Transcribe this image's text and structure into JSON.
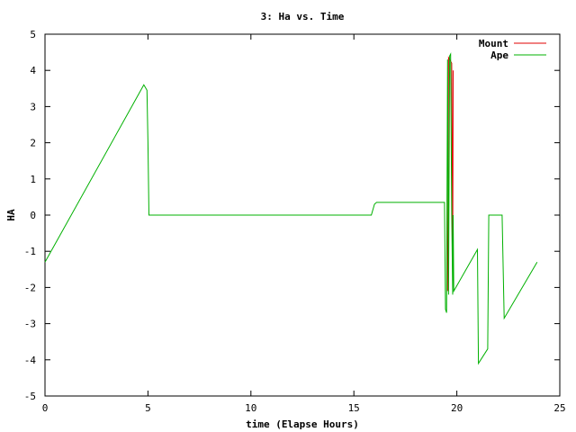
{
  "chart_data": {
    "type": "line",
    "title": "3: Ha vs. Time",
    "xlabel": "time (Elapse Hours)",
    "ylabel": "HA",
    "xlim": [
      0,
      25
    ],
    "ylim": [
      -5,
      5
    ],
    "xticks": [
      0,
      5,
      10,
      15,
      20,
      25
    ],
    "yticks": [
      -5,
      -4,
      -3,
      -2,
      -1,
      0,
      1,
      2,
      3,
      4,
      5
    ],
    "grid": false,
    "legend_position": "top-right",
    "series": [
      {
        "name": "Mount",
        "color": "#e00000",
        "x": [
          19.55,
          19.6,
          19.75,
          19.8,
          19.82
        ],
        "y": [
          -2.1,
          4.35,
          4.2,
          -1.3,
          4.0
        ]
      },
      {
        "name": "Ape",
        "color": "#00b000",
        "x": [
          0,
          4.8,
          4.85,
          4.95,
          5.0,
          5.05,
          15.85,
          16.0,
          16.1,
          19.4,
          19.45,
          19.5,
          19.55,
          19.6,
          19.65,
          19.7,
          19.75,
          19.8,
          19.82,
          19.85,
          21.0,
          21.05,
          21.5,
          21.55,
          22.2,
          22.3,
          23.9
        ],
        "y": [
          -1.3,
          3.6,
          3.55,
          3.45,
          2.0,
          0.0,
          0.0,
          0.3,
          0.35,
          0.35,
          -2.6,
          -2.7,
          4.3,
          -2.2,
          4.4,
          4.45,
          0.0,
          -2.2,
          0.0,
          -2.1,
          -0.95,
          -4.1,
          -3.7,
          0.0,
          0.0,
          -2.85,
          -1.3
        ]
      }
    ]
  }
}
